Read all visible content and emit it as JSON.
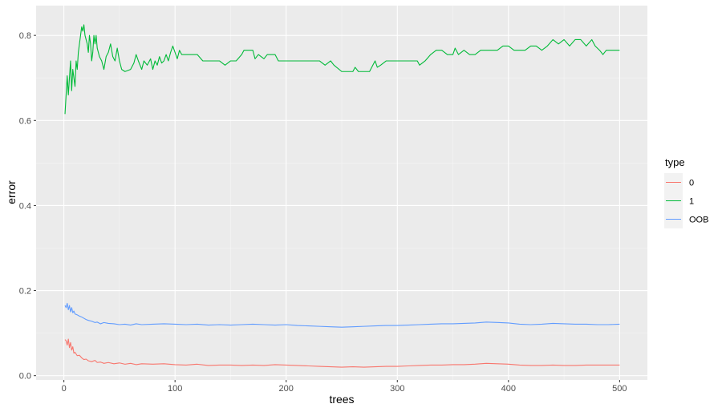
{
  "chart_data": {
    "type": "line",
    "xlabel": "trees",
    "ylabel": "error",
    "xlim": [
      -25,
      525
    ],
    "ylim": [
      -0.01,
      0.87
    ],
    "x_ticks": [
      0,
      100,
      200,
      300,
      400,
      500
    ],
    "y_ticks": [
      0.0,
      0.2,
      0.4,
      0.6,
      0.8
    ],
    "x_tick_labels": [
      "0",
      "100",
      "200",
      "300",
      "400",
      "500"
    ],
    "y_tick_labels": [
      "0.0",
      "0.2",
      "0.4",
      "0.6",
      "0.8"
    ],
    "grid": true,
    "legend": {
      "title": "type",
      "position": "right"
    },
    "series": [
      {
        "name": "0",
        "color": "#F8766D",
        "points": [
          [
            1,
            0.085
          ],
          [
            2,
            0.082
          ],
          [
            3,
            0.072
          ],
          [
            4,
            0.086
          ],
          [
            5,
            0.066
          ],
          [
            6,
            0.078
          ],
          [
            7,
            0.06
          ],
          [
            8,
            0.068
          ],
          [
            9,
            0.053
          ],
          [
            10,
            0.055
          ],
          [
            12,
            0.047
          ],
          [
            14,
            0.048
          ],
          [
            16,
            0.042
          ],
          [
            18,
            0.038
          ],
          [
            20,
            0.039
          ],
          [
            22,
            0.035
          ],
          [
            25,
            0.033
          ],
          [
            28,
            0.036
          ],
          [
            30,
            0.031
          ],
          [
            33,
            0.032
          ],
          [
            36,
            0.029
          ],
          [
            40,
            0.031
          ],
          [
            45,
            0.028
          ],
          [
            50,
            0.03
          ],
          [
            55,
            0.027
          ],
          [
            60,
            0.029
          ],
          [
            65,
            0.026
          ],
          [
            70,
            0.028
          ],
          [
            80,
            0.027
          ],
          [
            90,
            0.028
          ],
          [
            100,
            0.026
          ],
          [
            110,
            0.025
          ],
          [
            120,
            0.027
          ],
          [
            130,
            0.024
          ],
          [
            140,
            0.025
          ],
          [
            150,
            0.025
          ],
          [
            160,
            0.024
          ],
          [
            170,
            0.025
          ],
          [
            180,
            0.024
          ],
          [
            190,
            0.026
          ],
          [
            200,
            0.025
          ],
          [
            210,
            0.024
          ],
          [
            220,
            0.023
          ],
          [
            230,
            0.022
          ],
          [
            240,
            0.021
          ],
          [
            250,
            0.02
          ],
          [
            260,
            0.021
          ],
          [
            270,
            0.02
          ],
          [
            280,
            0.021
          ],
          [
            290,
            0.022
          ],
          [
            300,
            0.022
          ],
          [
            310,
            0.023
          ],
          [
            320,
            0.024
          ],
          [
            330,
            0.025
          ],
          [
            340,
            0.025
          ],
          [
            350,
            0.026
          ],
          [
            360,
            0.026
          ],
          [
            370,
            0.027
          ],
          [
            380,
            0.029
          ],
          [
            390,
            0.028
          ],
          [
            400,
            0.027
          ],
          [
            410,
            0.025
          ],
          [
            420,
            0.024
          ],
          [
            430,
            0.024
          ],
          [
            440,
            0.025
          ],
          [
            450,
            0.024
          ],
          [
            460,
            0.024
          ],
          [
            470,
            0.025
          ],
          [
            480,
            0.025
          ],
          [
            490,
            0.025
          ],
          [
            500,
            0.025
          ]
        ]
      },
      {
        "name": "1",
        "color": "#00BA38",
        "points": [
          [
            1,
            0.615
          ],
          [
            2,
            0.66
          ],
          [
            3,
            0.705
          ],
          [
            4,
            0.66
          ],
          [
            5,
            0.7
          ],
          [
            6,
            0.74
          ],
          [
            7,
            0.67
          ],
          [
            8,
            0.72
          ],
          [
            9,
            0.7
          ],
          [
            10,
            0.68
          ],
          [
            11,
            0.74
          ],
          [
            12,
            0.72
          ],
          [
            13,
            0.76
          ],
          [
            14,
            0.78
          ],
          [
            15,
            0.8
          ],
          [
            16,
            0.82
          ],
          [
            17,
            0.81
          ],
          [
            18,
            0.825
          ],
          [
            19,
            0.8
          ],
          [
            20,
            0.79
          ],
          [
            21,
            0.78
          ],
          [
            22,
            0.76
          ],
          [
            23,
            0.8
          ],
          [
            24,
            0.78
          ],
          [
            25,
            0.74
          ],
          [
            26,
            0.76
          ],
          [
            27,
            0.8
          ],
          [
            28,
            0.78
          ],
          [
            29,
            0.8
          ],
          [
            30,
            0.77
          ],
          [
            31,
            0.76
          ],
          [
            32,
            0.75
          ],
          [
            34,
            0.74
          ],
          [
            36,
            0.72
          ],
          [
            38,
            0.75
          ],
          [
            40,
            0.76
          ],
          [
            42,
            0.78
          ],
          [
            44,
            0.75
          ],
          [
            46,
            0.74
          ],
          [
            48,
            0.77
          ],
          [
            50,
            0.74
          ],
          [
            52,
            0.72
          ],
          [
            55,
            0.715
          ],
          [
            60,
            0.72
          ],
          [
            63,
            0.735
          ],
          [
            65,
            0.755
          ],
          [
            67,
            0.74
          ],
          [
            70,
            0.72
          ],
          [
            72,
            0.74
          ],
          [
            75,
            0.73
          ],
          [
            78,
            0.745
          ],
          [
            80,
            0.72
          ],
          [
            82,
            0.74
          ],
          [
            84,
            0.73
          ],
          [
            86,
            0.75
          ],
          [
            88,
            0.735
          ],
          [
            90,
            0.74
          ],
          [
            92,
            0.755
          ],
          [
            94,
            0.74
          ],
          [
            96,
            0.76
          ],
          [
            98,
            0.775
          ],
          [
            100,
            0.76
          ],
          [
            102,
            0.745
          ],
          [
            104,
            0.765
          ],
          [
            106,
            0.755
          ],
          [
            110,
            0.755
          ],
          [
            120,
            0.755
          ],
          [
            125,
            0.74
          ],
          [
            130,
            0.74
          ],
          [
            140,
            0.74
          ],
          [
            145,
            0.73
          ],
          [
            150,
            0.74
          ],
          [
            155,
            0.74
          ],
          [
            160,
            0.755
          ],
          [
            162,
            0.765
          ],
          [
            170,
            0.765
          ],
          [
            172,
            0.745
          ],
          [
            175,
            0.755
          ],
          [
            180,
            0.745
          ],
          [
            183,
            0.755
          ],
          [
            190,
            0.755
          ],
          [
            193,
            0.74
          ],
          [
            200,
            0.74
          ],
          [
            210,
            0.74
          ],
          [
            220,
            0.74
          ],
          [
            230,
            0.74
          ],
          [
            235,
            0.73
          ],
          [
            240,
            0.74
          ],
          [
            243,
            0.73
          ],
          [
            250,
            0.715
          ],
          [
            260,
            0.715
          ],
          [
            262,
            0.725
          ],
          [
            265,
            0.715
          ],
          [
            270,
            0.715
          ],
          [
            275,
            0.715
          ],
          [
            278,
            0.73
          ],
          [
            280,
            0.74
          ],
          [
            282,
            0.725
          ],
          [
            285,
            0.73
          ],
          [
            290,
            0.74
          ],
          [
            300,
            0.74
          ],
          [
            310,
            0.74
          ],
          [
            318,
            0.74
          ],
          [
            320,
            0.73
          ],
          [
            325,
            0.74
          ],
          [
            330,
            0.755
          ],
          [
            335,
            0.765
          ],
          [
            340,
            0.765
          ],
          [
            345,
            0.755
          ],
          [
            350,
            0.755
          ],
          [
            352,
            0.77
          ],
          [
            355,
            0.755
          ],
          [
            360,
            0.765
          ],
          [
            365,
            0.755
          ],
          [
            370,
            0.755
          ],
          [
            375,
            0.765
          ],
          [
            380,
            0.765
          ],
          [
            390,
            0.765
          ],
          [
            395,
            0.775
          ],
          [
            400,
            0.775
          ],
          [
            405,
            0.765
          ],
          [
            410,
            0.765
          ],
          [
            415,
            0.765
          ],
          [
            420,
            0.775
          ],
          [
            425,
            0.775
          ],
          [
            430,
            0.765
          ],
          [
            435,
            0.775
          ],
          [
            440,
            0.79
          ],
          [
            445,
            0.78
          ],
          [
            450,
            0.79
          ],
          [
            455,
            0.775
          ],
          [
            460,
            0.79
          ],
          [
            465,
            0.79
          ],
          [
            470,
            0.775
          ],
          [
            475,
            0.79
          ],
          [
            478,
            0.775
          ],
          [
            482,
            0.765
          ],
          [
            485,
            0.755
          ],
          [
            488,
            0.765
          ],
          [
            490,
            0.765
          ],
          [
            500,
            0.765
          ]
        ]
      },
      {
        "name": "OOB",
        "color": "#619CFF",
        "points": [
          [
            1,
            0.165
          ],
          [
            2,
            0.16
          ],
          [
            3,
            0.17
          ],
          [
            4,
            0.155
          ],
          [
            5,
            0.165
          ],
          [
            6,
            0.15
          ],
          [
            7,
            0.16
          ],
          [
            8,
            0.148
          ],
          [
            9,
            0.152
          ],
          [
            10,
            0.145
          ],
          [
            12,
            0.143
          ],
          [
            14,
            0.14
          ],
          [
            16,
            0.138
          ],
          [
            18,
            0.135
          ],
          [
            20,
            0.132
          ],
          [
            22,
            0.13
          ],
          [
            25,
            0.128
          ],
          [
            28,
            0.125
          ],
          [
            30,
            0.126
          ],
          [
            33,
            0.122
          ],
          [
            36,
            0.125
          ],
          [
            40,
            0.123
          ],
          [
            45,
            0.122
          ],
          [
            50,
            0.12
          ],
          [
            55,
            0.121
          ],
          [
            60,
            0.119
          ],
          [
            65,
            0.122
          ],
          [
            70,
            0.12
          ],
          [
            80,
            0.121
          ],
          [
            90,
            0.122
          ],
          [
            100,
            0.121
          ],
          [
            110,
            0.12
          ],
          [
            120,
            0.121
          ],
          [
            130,
            0.119
          ],
          [
            140,
            0.12
          ],
          [
            150,
            0.119
          ],
          [
            160,
            0.12
          ],
          [
            170,
            0.121
          ],
          [
            180,
            0.12
          ],
          [
            190,
            0.119
          ],
          [
            200,
            0.12
          ],
          [
            210,
            0.118
          ],
          [
            220,
            0.117
          ],
          [
            230,
            0.116
          ],
          [
            240,
            0.115
          ],
          [
            250,
            0.114
          ],
          [
            260,
            0.115
          ],
          [
            270,
            0.116
          ],
          [
            280,
            0.117
          ],
          [
            290,
            0.118
          ],
          [
            300,
            0.118
          ],
          [
            310,
            0.119
          ],
          [
            320,
            0.12
          ],
          [
            330,
            0.121
          ],
          [
            340,
            0.122
          ],
          [
            350,
            0.122
          ],
          [
            360,
            0.123
          ],
          [
            370,
            0.124
          ],
          [
            380,
            0.126
          ],
          [
            390,
            0.125
          ],
          [
            400,
            0.124
          ],
          [
            410,
            0.121
          ],
          [
            420,
            0.12
          ],
          [
            430,
            0.121
          ],
          [
            440,
            0.123
          ],
          [
            450,
            0.122
          ],
          [
            460,
            0.121
          ],
          [
            470,
            0.121
          ],
          [
            480,
            0.12
          ],
          [
            490,
            0.12
          ],
          [
            500,
            0.121
          ]
        ]
      }
    ]
  }
}
